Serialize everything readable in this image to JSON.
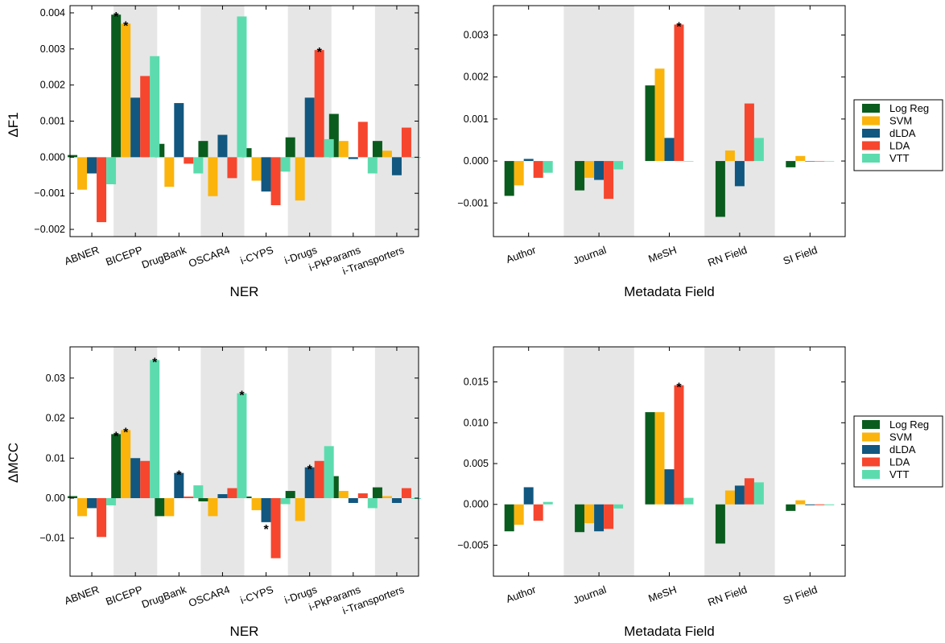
{
  "colors": {
    "shade": "#e6e6e6",
    "Log Reg": "#0a5c1e",
    "SVM": "#fbb40c",
    "dLDA": "#11577f",
    "LDA": "#f6462e",
    "VTT": "#5cdcae"
  },
  "series_names": [
    "Log Reg",
    "SVM",
    "dLDA",
    "LDA",
    "VTT"
  ],
  "chart_data": [
    {
      "type": "bar",
      "xlabel": "NER",
      "ylabel": "ΔF1",
      "ylim": [
        -0.0022,
        0.0042
      ],
      "yticks": [
        -0.002,
        -0.001,
        0.0,
        0.001,
        0.002,
        0.003,
        0.004
      ],
      "ytick_labels": [
        "−0.002",
        "−0.001",
        "0.000",
        "0.001",
        "0.002",
        "0.003",
        "0.004"
      ],
      "categories": [
        "ABNER",
        "BICEPP",
        "DrugBank",
        "OSCAR4",
        "i-CYPS",
        "i-Drugs",
        "i-PkParams",
        "i-Transporters"
      ],
      "shaded": [
        1,
        3,
        5,
        7
      ],
      "series": [
        {
          "name": "Log Reg",
          "values": [
            6e-05,
            0.00395,
            0.00037,
            0.00045,
            0.00025,
            0.00055,
            0.0012,
            0.00045
          ]
        },
        {
          "name": "SVM",
          "values": [
            -0.0009,
            0.0037,
            -0.00082,
            -0.00108,
            -0.00065,
            -0.0012,
            0.00045,
            0.00018
          ]
        },
        {
          "name": "dLDA",
          "values": [
            -0.00045,
            0.00165,
            0.0015,
            0.00062,
            -0.00095,
            0.00165,
            -5e-05,
            -0.0005
          ]
        },
        {
          "name": "LDA",
          "values": [
            -0.0018,
            0.00225,
            -0.00018,
            -0.00058,
            -0.00133,
            0.00297,
            0.00098,
            0.00082
          ]
        },
        {
          "name": "VTT",
          "values": [
            -0.00075,
            0.0028,
            -0.00045,
            0.0039,
            -0.0004,
            0.0005,
            -0.00045,
            -2e-05
          ]
        }
      ],
      "significance": [
        [
          1,
          0
        ],
        [
          1,
          1
        ],
        [
          5,
          3
        ]
      ]
    },
    {
      "type": "bar",
      "xlabel": "Metadata Field",
      "ylabel": "",
      "ylim": [
        -0.0018,
        0.0037
      ],
      "yticks": [
        -0.001,
        0.0,
        0.001,
        0.002,
        0.003
      ],
      "ytick_labels": [
        "−0.001",
        "0.000",
        "0.001",
        "0.002",
        "0.003"
      ],
      "categories": [
        "Author",
        "Journal",
        "MeSH",
        "RN Field",
        "SI Field"
      ],
      "shaded": [
        1,
        3
      ],
      "series": [
        {
          "name": "Log Reg",
          "values": [
            -0.00083,
            -0.0007,
            0.0018,
            -0.00133,
            -0.00015
          ]
        },
        {
          "name": "SVM",
          "values": [
            -0.00058,
            -0.0004,
            0.0022,
            0.00025,
            0.00012
          ]
        },
        {
          "name": "dLDA",
          "values": [
            5e-05,
            -0.00045,
            0.00055,
            -0.0006,
            -1e-05
          ]
        },
        {
          "name": "LDA",
          "values": [
            -0.0004,
            -0.0009,
            0.00325,
            0.00137,
            -1e-05
          ]
        },
        {
          "name": "VTT",
          "values": [
            -0.00028,
            -0.0002,
            -1e-05,
            0.00055,
            -1e-05
          ]
        }
      ],
      "significance": [
        [
          2,
          3
        ]
      ]
    },
    {
      "type": "bar",
      "xlabel": "NER",
      "ylabel": "ΔMCC",
      "ylim": [
        -0.0195,
        0.0378
      ],
      "yticks": [
        -0.01,
        0.0,
        0.01,
        0.02,
        0.03
      ],
      "ytick_labels": [
        "−0.01",
        "0.00",
        "0.01",
        "0.02",
        "0.03"
      ],
      "categories": [
        "ABNER",
        "BICEPP",
        "DrugBank",
        "OSCAR4",
        "i-CYPS",
        "i-Drugs",
        "i-PkParams",
        "i-Transporters"
      ],
      "shaded": [
        1,
        3,
        5,
        7
      ],
      "series": [
        {
          "name": "Log Reg",
          "values": [
            0.0005,
            0.016,
            -0.0045,
            -0.0008,
            0.0004,
            0.0018,
            0.0055,
            0.0027
          ]
        },
        {
          "name": "SVM",
          "values": [
            -0.0045,
            0.017,
            -0.0045,
            -0.0045,
            -0.003,
            -0.0057,
            0.0018,
            0.0005
          ]
        },
        {
          "name": "dLDA",
          "values": [
            -0.0025,
            0.01,
            0.0063,
            0.001,
            -0.006,
            0.0077,
            -0.0012,
            -0.0012
          ]
        },
        {
          "name": "LDA",
          "values": [
            -0.0097,
            0.0093,
            0.0004,
            0.0025,
            -0.015,
            0.0093,
            0.0012,
            0.0025
          ]
        },
        {
          "name": "VTT",
          "values": [
            -0.0018,
            0.0345,
            0.0032,
            0.0262,
            -0.0015,
            0.013,
            -0.0025,
            -0.0002
          ]
        }
      ],
      "significance": [
        [
          1,
          0
        ],
        [
          1,
          1
        ],
        [
          1,
          4
        ],
        [
          2,
          2
        ],
        [
          3,
          4
        ],
        [
          4,
          2
        ],
        [
          5,
          2
        ]
      ]
    },
    {
      "type": "bar",
      "xlabel": "Metadata Field",
      "ylabel": "",
      "ylim": [
        -0.0088,
        0.0193
      ],
      "yticks": [
        -0.005,
        0.0,
        0.005,
        0.01,
        0.015
      ],
      "ytick_labels": [
        "−0.005",
        "0.000",
        "0.005",
        "0.010",
        "0.015"
      ],
      "categories": [
        "Author",
        "Journal",
        "MeSH",
        "RN Field",
        "SI Field"
      ],
      "shaded": [
        1,
        3
      ],
      "series": [
        {
          "name": "Log Reg",
          "values": [
            -0.0033,
            -0.0034,
            0.0113,
            -0.0048,
            -0.0008
          ]
        },
        {
          "name": "SVM",
          "values": [
            -0.0025,
            -0.0023,
            0.0113,
            0.0017,
            0.0005
          ]
        },
        {
          "name": "dLDA",
          "values": [
            0.0021,
            -0.0033,
            0.0043,
            0.0023,
            -0.0001
          ]
        },
        {
          "name": "LDA",
          "values": [
            -0.002,
            -0.003,
            0.0146,
            0.0032,
            -0.0001
          ]
        },
        {
          "name": "VTT",
          "values": [
            0.0003,
            -0.0005,
            0.0008,
            0.0027,
            -0.0001
          ]
        }
      ],
      "significance": [
        [
          2,
          3
        ]
      ]
    }
  ]
}
